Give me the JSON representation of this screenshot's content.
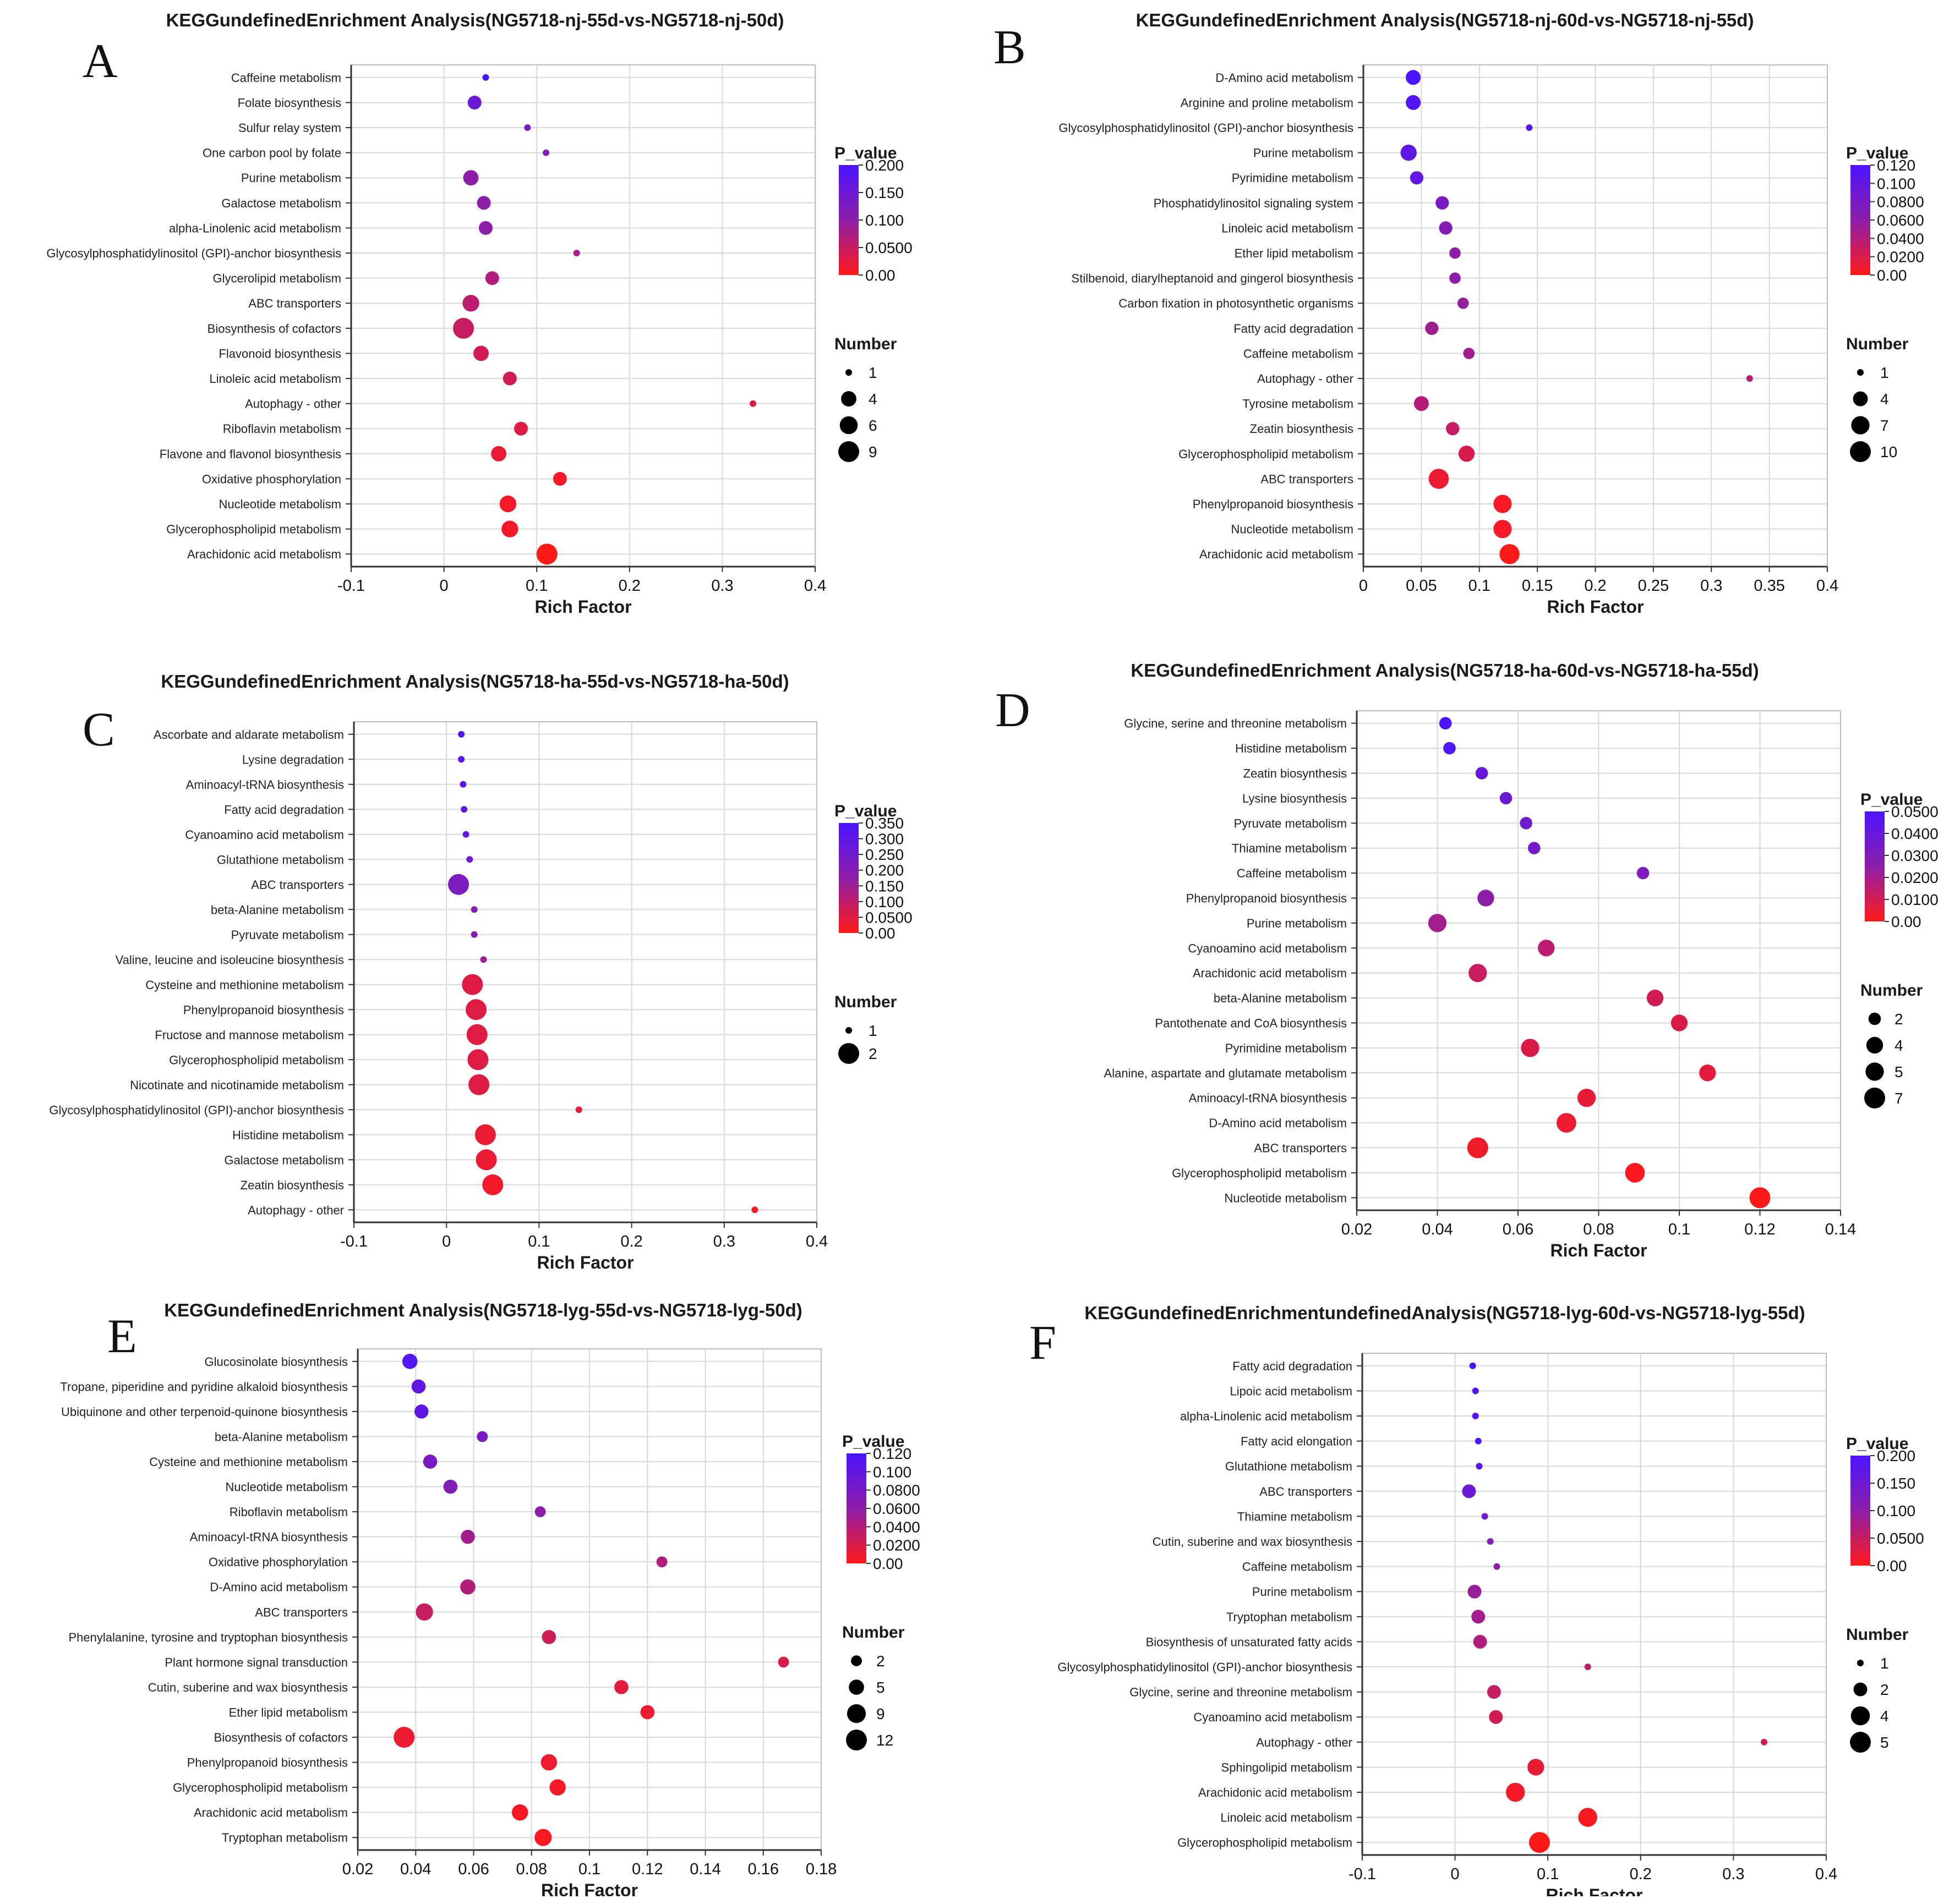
{
  "chart_data": [
    {
      "panel": "A",
      "type": "scatter",
      "title": "KEGGundefinedEnrichment Analysis(NG5718-nj-55d-vs-NG5718-nj-50d)",
      "xlabel": "Rich Factor",
      "xlim": [
        -0.1,
        0.4
      ],
      "xticks": [
        "-0.1",
        "0",
        "0.1",
        "0.2",
        "0.3",
        "0.4"
      ],
      "xtick_values": [
        -0.1,
        0,
        0.1,
        0.2,
        0.3,
        0.4
      ],
      "pvalue_title": "P_value",
      "pvalue_ticks": [
        "0.200",
        "0.150",
        "0.100",
        "0.0500",
        "0.00"
      ],
      "pvalue_max": 0.2,
      "number_title": "Number",
      "number_ticks": [
        "1",
        "4",
        "6",
        "9"
      ],
      "number_values": [
        1,
        4,
        6,
        9
      ],
      "number_max": 9,
      "categories": [
        "Caffeine metabolism",
        "Folate biosynthesis",
        "Sulfur relay system",
        "One carbon pool by folate",
        "Purine metabolism",
        "Galactose metabolism",
        "alpha-Linolenic acid metabolism",
        "Glycosylphosphatidylinositol (GPI)-anchor biosynthesis",
        "Glycerolipid metabolism",
        "ABC transporters",
        "Biosynthesis of cofactors",
        "Flavonoid biosynthesis",
        "Linoleic acid metabolism",
        "Autophagy - other",
        "Riboflavin metabolism",
        "Flavone and flavonol biosynthesis",
        "Oxidative phosphorylation",
        "Nucleotide metabolism",
        "Glycerophospholipid metabolism",
        "Arachidonic acid metabolism"
      ],
      "rich_factor": [
        0.045,
        0.033,
        0.09,
        0.11,
        0.029,
        0.043,
        0.045,
        0.143,
        0.052,
        0.029,
        0.021,
        0.04,
        0.071,
        0.333,
        0.083,
        0.059,
        0.125,
        0.069,
        0.071,
        0.111
      ],
      "number": [
        1,
        3,
        1,
        1,
        4,
        3,
        3,
        1,
        3,
        5,
        9,
        4,
        3,
        1,
        3,
        4,
        3,
        5,
        5,
        9
      ],
      "p_value": [
        0.2,
        0.15,
        0.13,
        0.12,
        0.1,
        0.1,
        0.1,
        0.08,
        0.07,
        0.06,
        0.05,
        0.04,
        0.04,
        0.03,
        0.03,
        0.02,
        0.01,
        0.01,
        0.01,
        0.0
      ]
    },
    {
      "panel": "B",
      "type": "scatter",
      "title": "KEGGundefinedEnrichment Analysis(NG5718-nj-60d-vs-NG5718-nj-55d)",
      "xlabel": "Rich Factor",
      "xlim": [
        0,
        0.4
      ],
      "xticks": [
        "0",
        "0.05",
        "0.1",
        "0.15",
        "0.2",
        "0.25",
        "0.3",
        "0.35",
        "0.4"
      ],
      "xtick_values": [
        0,
        0.05,
        0.1,
        0.15,
        0.2,
        0.25,
        0.3,
        0.35,
        0.4
      ],
      "pvalue_title": "P_value",
      "pvalue_ticks": [
        "0.120",
        "0.100",
        "0.0800",
        "0.0600",
        "0.0400",
        "0.0200",
        "0.00"
      ],
      "pvalue_max": 0.12,
      "number_title": "Number",
      "number_ticks": [
        "1",
        "4",
        "7",
        "10"
      ],
      "number_values": [
        1,
        4,
        7,
        10
      ],
      "number_max": 10,
      "categories": [
        "D-Amino acid metabolism",
        "Arginine and proline metabolism",
        "Glycosylphosphatidylinositol (GPI)-anchor biosynthesis",
        "Purine metabolism",
        "Pyrimidine metabolism",
        "Phosphatidylinositol signaling system",
        "Linoleic acid metabolism",
        "Ether lipid metabolism",
        "Stilbenoid, diarylheptanoid and gingerol biosynthesis",
        "Carbon fixation in photosynthetic organisms",
        "Fatty acid degradation",
        "Caffeine metabolism",
        "Autophagy - other",
        "Tyrosine metabolism",
        "Zeatin biosynthesis",
        "Glycerophospholipid metabolism",
        "ABC transporters",
        "Phenylpropanoid biosynthesis",
        "Nucleotide metabolism",
        "Arachidonic acid metabolism"
      ],
      "rich_factor": [
        0.043,
        0.043,
        0.143,
        0.039,
        0.046,
        0.068,
        0.071,
        0.079,
        0.079,
        0.086,
        0.059,
        0.091,
        0.333,
        0.05,
        0.077,
        0.089,
        0.065,
        0.12,
        0.12,
        0.126
      ],
      "number": [
        4,
        4,
        1,
        5,
        3,
        3,
        3,
        2,
        2,
        2,
        3,
        2,
        1,
        4,
        3,
        5,
        9,
        7,
        7,
        9
      ],
      "p_value": [
        0.12,
        0.115,
        0.11,
        0.1,
        0.1,
        0.08,
        0.07,
        0.06,
        0.06,
        0.055,
        0.05,
        0.05,
        0.04,
        0.04,
        0.03,
        0.02,
        0.01,
        0.005,
        0.005,
        0.0
      ]
    },
    {
      "panel": "C",
      "type": "scatter",
      "title": "KEGGundefinedEnrichment Analysis(NG5718-ha-55d-vs-NG5718-ha-50d)",
      "xlabel": "Rich Factor",
      "xlim": [
        -0.1,
        0.4
      ],
      "xticks": [
        "-0.1",
        "0",
        "0.1",
        "0.2",
        "0.3",
        "0.4"
      ],
      "xtick_values": [
        -0.1,
        0,
        0.1,
        0.2,
        0.3,
        0.4
      ],
      "pvalue_title": "P_value",
      "pvalue_ticks": [
        "0.350",
        "0.300",
        "0.250",
        "0.200",
        "0.150",
        "0.100",
        "0.0500",
        "0.00"
      ],
      "pvalue_max": 0.35,
      "number_title": "Number",
      "number_ticks": [
        "1",
        "2"
      ],
      "number_values": [
        1,
        2
      ],
      "number_max": 2,
      "categories": [
        "Ascorbate and aldarate metabolism",
        "Lysine degradation",
        "Aminoacyl-tRNA biosynthesis",
        "Fatty acid degradation",
        "Cyanoamino acid metabolism",
        "Glutathione metabolism",
        "ABC transporters",
        "beta-Alanine metabolism",
        "Pyruvate metabolism",
        "Valine, leucine and isoleucine biosynthesis",
        "Cysteine and methionine metabolism",
        "Phenylpropanoid biosynthesis",
        "Fructose and mannose metabolism",
        "Glycerophospholipid metabolism",
        "Nicotinate and nicotinamide metabolism",
        "Glycosylphosphatidylinositol (GPI)-anchor biosynthesis",
        "Histidine metabolism",
        "Galactose metabolism",
        "Zeatin biosynthesis",
        "Autophagy - other"
      ],
      "rich_factor": [
        0.016,
        0.016,
        0.018,
        0.019,
        0.021,
        0.025,
        0.013,
        0.03,
        0.03,
        0.04,
        0.028,
        0.032,
        0.033,
        0.034,
        0.035,
        0.143,
        0.042,
        0.043,
        0.05,
        0.333
      ],
      "number": [
        1,
        1,
        1,
        1,
        1,
        1,
        2,
        1,
        1,
        1,
        2,
        2,
        2,
        2,
        2,
        1,
        2,
        2,
        2,
        1
      ],
      "p_value": [
        0.33,
        0.33,
        0.31,
        0.3,
        0.28,
        0.26,
        0.22,
        0.2,
        0.2,
        0.15,
        0.05,
        0.05,
        0.05,
        0.05,
        0.05,
        0.04,
        0.03,
        0.03,
        0.02,
        0.01
      ]
    },
    {
      "panel": "D",
      "type": "scatter",
      "title": "KEGGundefinedEnrichment Analysis(NG5718-ha-60d-vs-NG5718-ha-55d)",
      "xlabel": "Rich Factor",
      "xlim": [
        0.02,
        0.14
      ],
      "xticks": [
        "0.02",
        "0.04",
        "0.06",
        "0.08",
        "0.1",
        "0.12",
        "0.14"
      ],
      "xtick_values": [
        0.02,
        0.04,
        0.06,
        0.08,
        0.1,
        0.12,
        0.14
      ],
      "pvalue_title": "P_value",
      "pvalue_ticks": [
        "0.0500",
        "0.0400",
        "0.0300",
        "0.0200",
        "0.0100",
        "0.00"
      ],
      "pvalue_max": 0.05,
      "number_title": "Number",
      "number_ticks": [
        "2",
        "4",
        "5",
        "7"
      ],
      "number_values": [
        2,
        4,
        5,
        7
      ],
      "number_max": 7,
      "categories": [
        "Glycine, serine and threonine metabolism",
        "Histidine metabolism",
        "Zeatin biosynthesis",
        "Lysine biosynthesis",
        "Pyruvate metabolism",
        "Thiamine metabolism",
        "Caffeine metabolism",
        "Phenylpropanoid biosynthesis",
        "Purine metabolism",
        "Cyanoamino acid metabolism",
        "Arachidonic acid metabolism",
        "beta-Alanine metabolism",
        "Pantothenate and CoA biosynthesis",
        "Pyrimidine metabolism",
        "Alanine, aspartate and glutamate metabolism",
        "Aminoacyl-tRNA biosynthesis",
        "D-Amino acid metabolism",
        "ABC transporters",
        "Glycerophospholipid metabolism",
        "Nucleotide metabolism"
      ],
      "rich_factor": [
        0.042,
        0.043,
        0.051,
        0.057,
        0.062,
        0.064,
        0.091,
        0.052,
        0.04,
        0.067,
        0.05,
        0.094,
        0.1,
        0.063,
        0.107,
        0.077,
        0.072,
        0.05,
        0.089,
        0.12
      ],
      "number": [
        2,
        2,
        2,
        2,
        2,
        2,
        2,
        4,
        5,
        4,
        5,
        4,
        4,
        5,
        4,
        5,
        6,
        7,
        6,
        7
      ],
      "p_value": [
        0.05,
        0.048,
        0.04,
        0.038,
        0.036,
        0.034,
        0.03,
        0.025,
        0.02,
        0.015,
        0.012,
        0.01,
        0.008,
        0.008,
        0.006,
        0.005,
        0.004,
        0.003,
        0.001,
        0.0
      ]
    },
    {
      "panel": "E",
      "type": "scatter",
      "title": "KEGGundefinedEnrichment Analysis(NG5718-lyg-55d-vs-NG5718-lyg-50d)",
      "xlabel": "Rich Factor",
      "xlim": [
        0.02,
        0.18
      ],
      "xticks": [
        "0.02",
        "0.04",
        "0.06",
        "0.08",
        "0.1",
        "0.12",
        "0.14",
        "0.16",
        "0.18"
      ],
      "xtick_values": [
        0.02,
        0.04,
        0.06,
        0.08,
        0.1,
        0.12,
        0.14,
        0.16,
        0.18
      ],
      "pvalue_title": "P_value",
      "pvalue_ticks": [
        "0.120",
        "0.100",
        "0.0800",
        "0.0600",
        "0.0400",
        "0.0200",
        "0.00"
      ],
      "pvalue_max": 0.12,
      "number_title": "Number",
      "number_ticks": [
        "2",
        "5",
        "9",
        "12"
      ],
      "number_values": [
        2,
        5,
        9,
        12
      ],
      "number_max": 12,
      "categories": [
        "Glucosinolate biosynthesis",
        "Tropane, piperidine and pyridine alkaloid biosynthesis",
        "Ubiquinone and other terpenoid-quinone biosynthesis",
        "beta-Alanine metabolism",
        "Cysteine and methionine metabolism",
        "Nucleotide metabolism",
        "Riboflavin metabolism",
        "Aminoacyl-tRNA biosynthesis",
        "Oxidative phosphorylation",
        "D-Amino acid metabolism",
        "ABC transporters",
        "Phenylalanine, tyrosine and tryptophan biosynthesis",
        "Plant hormone signal transduction",
        "Cutin, suberine and wax biosynthesis",
        "Ether lipid metabolism",
        "Biosynthesis of cofactors",
        "Phenylpropanoid biosynthesis",
        "Glycerophospholipid metabolism",
        "Arachidonic acid metabolism",
        "Tryptophan metabolism"
      ],
      "rich_factor": [
        0.038,
        0.041,
        0.042,
        0.063,
        0.045,
        0.052,
        0.083,
        0.058,
        0.125,
        0.058,
        0.043,
        0.086,
        0.167,
        0.111,
        0.12,
        0.036,
        0.086,
        0.089,
        0.076,
        0.084
      ],
      "number": [
        5,
        4,
        4,
        2,
        4,
        4,
        2,
        4,
        2,
        5,
        7,
        4,
        2,
        4,
        4,
        12,
        6,
        6,
        6,
        7
      ],
      "p_value": [
        0.11,
        0.1,
        0.1,
        0.08,
        0.08,
        0.07,
        0.06,
        0.05,
        0.04,
        0.04,
        0.03,
        0.025,
        0.02,
        0.015,
        0.01,
        0.01,
        0.008,
        0.006,
        0.004,
        0.002
      ]
    },
    {
      "panel": "F",
      "type": "scatter",
      "title": "KEGGundefinedEnrichmentundefinedAnalysis(NG5718-lyg-60d-vs-NG5718-lyg-55d)",
      "xlabel": "Rich Factor",
      "xlim": [
        -0.1,
        0.4
      ],
      "xticks": [
        "-0.1",
        "0",
        "0.1",
        "0.2",
        "0.3",
        "0.4"
      ],
      "xtick_values": [
        -0.1,
        0,
        0.1,
        0.2,
        0.3,
        0.4
      ],
      "pvalue_title": "P_value",
      "pvalue_ticks": [
        "0.200",
        "0.150",
        "0.100",
        "0.0500",
        "0.00"
      ],
      "pvalue_max": 0.2,
      "number_title": "Number",
      "number_ticks": [
        "1",
        "2",
        "4",
        "5"
      ],
      "number_values": [
        1,
        2,
        4,
        5
      ],
      "number_max": 5,
      "categories": [
        "Fatty acid degradation",
        "Lipoic acid metabolism",
        "alpha-Linolenic acid metabolism",
        "Fatty acid elongation",
        "Glutathione metabolism",
        "ABC transporters",
        "Thiamine metabolism",
        "Cutin, suberine and wax biosynthesis",
        "Caffeine metabolism",
        "Purine metabolism",
        "Tryptophan metabolism",
        "Biosynthesis of unsaturated fatty acids",
        "Glycosylphosphatidylinositol (GPI)-anchor biosynthesis",
        "Glycine, serine and threonine metabolism",
        "Cyanoamino acid metabolism",
        "Autophagy - other",
        "Sphingolipid metabolism",
        "Arachidonic acid metabolism",
        "Linoleic acid metabolism",
        "Glycerophospholipid metabolism"
      ],
      "rich_factor": [
        0.019,
        0.022,
        0.022,
        0.025,
        0.026,
        0.015,
        0.032,
        0.038,
        0.045,
        0.021,
        0.025,
        0.027,
        0.143,
        0.042,
        0.044,
        0.333,
        0.087,
        0.065,
        0.143,
        0.091
      ],
      "number": [
        1,
        1,
        1,
        1,
        1,
        2,
        1,
        1,
        1,
        2,
        2,
        2,
        1,
        2,
        2,
        1,
        3,
        4,
        4,
        5
      ],
      "p_value": [
        0.22,
        0.21,
        0.2,
        0.19,
        0.18,
        0.15,
        0.14,
        0.12,
        0.1,
        0.09,
        0.08,
        0.07,
        0.06,
        0.05,
        0.04,
        0.04,
        0.02,
        0.01,
        0.005,
        0.0
      ]
    }
  ],
  "colors": {
    "high": "#4b14ff",
    "mid": "#8d1ea8",
    "low": "#ff1a1a",
    "grid": "#d9d9d9",
    "axis": "#333333"
  }
}
